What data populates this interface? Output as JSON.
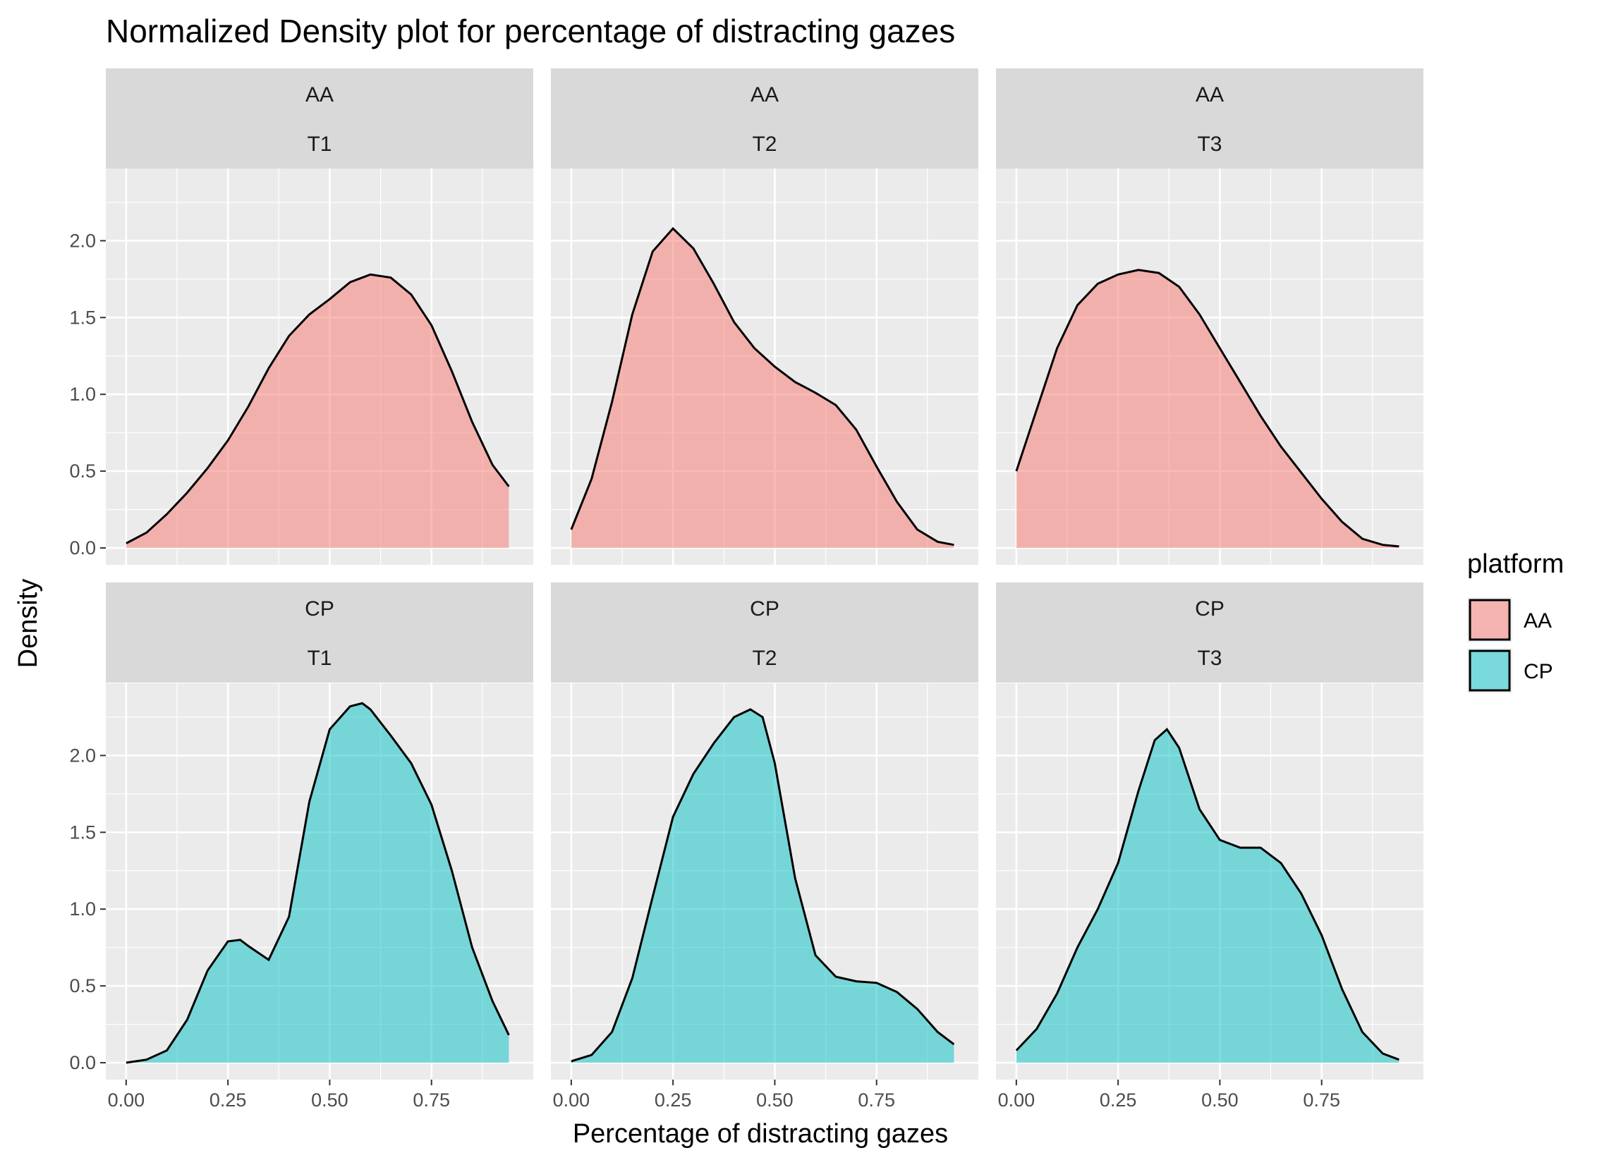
{
  "chart_data": {
    "type": "area",
    "title": "Normalized Density plot for percentage of distracting gazes",
    "xlabel": "Percentage of distracting gazes",
    "ylabel": "Density",
    "xlim": [
      -0.05,
      1.0
    ],
    "ylim": [
      -0.11,
      2.47
    ],
    "x_ticks": [
      0,
      0.25,
      0.5,
      0.75
    ],
    "x_tick_labels": [
      "0.00",
      "0.25",
      "0.50",
      "0.75"
    ],
    "y_ticks": [
      0,
      0.5,
      1,
      1.5,
      2
    ],
    "y_tick_labels": [
      "0.0",
      "0.5",
      "1.0",
      "1.5",
      "2.0"
    ],
    "grid": true,
    "facet_rows": [
      "AA",
      "CP"
    ],
    "facet_cols": [
      "T1",
      "T2",
      "T3"
    ],
    "legend": {
      "title": "platform",
      "position": "right",
      "entries": [
        {
          "label": "AA",
          "color": "#F8766D"
        },
        {
          "label": "CP",
          "color": "#00BFC4"
        }
      ]
    },
    "panels": [
      {
        "row": 0,
        "col": 0,
        "platform": "AA",
        "time": "T1",
        "color": "#F8766D",
        "x": [
          0.0,
          0.05,
          0.1,
          0.15,
          0.2,
          0.25,
          0.3,
          0.35,
          0.4,
          0.45,
          0.5,
          0.55,
          0.6,
          0.65,
          0.7,
          0.75,
          0.8,
          0.85,
          0.9,
          0.94
        ],
        "y": [
          0.03,
          0.1,
          0.22,
          0.36,
          0.52,
          0.7,
          0.92,
          1.17,
          1.38,
          1.52,
          1.62,
          1.73,
          1.78,
          1.76,
          1.65,
          1.45,
          1.15,
          0.82,
          0.54,
          0.4
        ]
      },
      {
        "row": 0,
        "col": 1,
        "platform": "AA",
        "time": "T2",
        "color": "#F8766D",
        "x": [
          0.0,
          0.05,
          0.1,
          0.15,
          0.2,
          0.25,
          0.3,
          0.35,
          0.4,
          0.45,
          0.5,
          0.55,
          0.6,
          0.65,
          0.7,
          0.75,
          0.8,
          0.85,
          0.9,
          0.94
        ],
        "y": [
          0.12,
          0.45,
          0.95,
          1.52,
          1.93,
          2.08,
          1.95,
          1.72,
          1.47,
          1.3,
          1.18,
          1.08,
          1.01,
          0.93,
          0.77,
          0.53,
          0.3,
          0.12,
          0.04,
          0.02
        ]
      },
      {
        "row": 0,
        "col": 2,
        "platform": "AA",
        "time": "T3",
        "color": "#F8766D",
        "x": [
          0.0,
          0.05,
          0.1,
          0.15,
          0.2,
          0.25,
          0.3,
          0.35,
          0.4,
          0.45,
          0.5,
          0.55,
          0.6,
          0.65,
          0.7,
          0.75,
          0.8,
          0.85,
          0.9,
          0.94
        ],
        "y": [
          0.5,
          0.9,
          1.3,
          1.58,
          1.72,
          1.78,
          1.81,
          1.79,
          1.7,
          1.52,
          1.3,
          1.08,
          0.86,
          0.66,
          0.49,
          0.32,
          0.17,
          0.06,
          0.02,
          0.01
        ]
      },
      {
        "row": 1,
        "col": 0,
        "platform": "CP",
        "time": "T1",
        "color": "#00BFC4",
        "x": [
          0.0,
          0.05,
          0.1,
          0.15,
          0.2,
          0.25,
          0.28,
          0.3,
          0.35,
          0.4,
          0.45,
          0.5,
          0.55,
          0.58,
          0.6,
          0.65,
          0.7,
          0.75,
          0.8,
          0.85,
          0.9,
          0.94
        ],
        "y": [
          0.0,
          0.02,
          0.08,
          0.28,
          0.6,
          0.79,
          0.8,
          0.76,
          0.67,
          0.95,
          1.7,
          2.17,
          2.32,
          2.34,
          2.3,
          2.13,
          1.95,
          1.68,
          1.25,
          0.75,
          0.4,
          0.18
        ]
      },
      {
        "row": 1,
        "col": 1,
        "platform": "CP",
        "time": "T2",
        "color": "#00BFC4",
        "x": [
          0.0,
          0.05,
          0.1,
          0.15,
          0.2,
          0.25,
          0.3,
          0.35,
          0.4,
          0.44,
          0.47,
          0.5,
          0.55,
          0.6,
          0.65,
          0.7,
          0.75,
          0.8,
          0.85,
          0.9,
          0.94
        ],
        "y": [
          0.01,
          0.05,
          0.2,
          0.55,
          1.08,
          1.6,
          1.88,
          2.08,
          2.25,
          2.3,
          2.25,
          1.95,
          1.2,
          0.7,
          0.56,
          0.53,
          0.52,
          0.46,
          0.35,
          0.2,
          0.12
        ]
      },
      {
        "row": 1,
        "col": 2,
        "platform": "CP",
        "time": "T3",
        "color": "#00BFC4",
        "x": [
          0.0,
          0.05,
          0.1,
          0.15,
          0.2,
          0.25,
          0.3,
          0.34,
          0.37,
          0.4,
          0.45,
          0.5,
          0.55,
          0.6,
          0.65,
          0.7,
          0.75,
          0.8,
          0.85,
          0.9,
          0.94
        ],
        "y": [
          0.08,
          0.22,
          0.45,
          0.75,
          1.0,
          1.3,
          1.77,
          2.1,
          2.17,
          2.05,
          1.65,
          1.45,
          1.4,
          1.4,
          1.3,
          1.1,
          0.83,
          0.48,
          0.2,
          0.06,
          0.02
        ]
      }
    ]
  }
}
